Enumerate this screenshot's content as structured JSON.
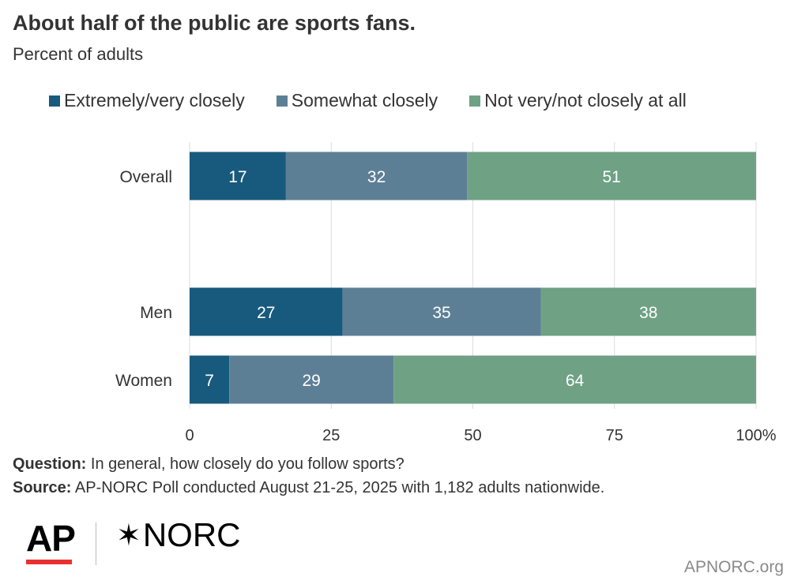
{
  "title": "About half of the public are sports fans.",
  "subtitle": "Percent of adults",
  "legend": [
    {
      "label": "Extremely/very closely",
      "color": "#185a7d"
    },
    {
      "label": "Somewhat closely",
      "color": "#5d7f96"
    },
    {
      "label": "Not very/not closely at all",
      "color": "#6fa185"
    }
  ],
  "chart_data": {
    "type": "bar",
    "orientation": "horizontal",
    "stacked": true,
    "categories": [
      "Overall",
      "Men",
      "Women"
    ],
    "series": [
      {
        "name": "Extremely/very closely",
        "values": [
          17,
          27,
          7
        ]
      },
      {
        "name": "Somewhat closely",
        "values": [
          32,
          35,
          29
        ]
      },
      {
        "name": "Not very/not closely at all",
        "values": [
          51,
          38,
          64
        ]
      }
    ],
    "xlim": [
      0,
      100
    ],
    "xticks": [
      "0",
      "25",
      "50",
      "75",
      "100%"
    ],
    "grid": true,
    "legend_position": "top"
  },
  "footer": {
    "question_label": "Question:",
    "question_text": " In general, how closely do you follow sports?",
    "source_label": "Source:",
    "source_text": " AP-NORC Poll conducted August 21-25, 2025 with 1,182 adults nationwide."
  },
  "logos": {
    "ap": "AP",
    "norc": "NORC",
    "ap_accent": "#e8312f"
  },
  "site": "APNORC.org"
}
